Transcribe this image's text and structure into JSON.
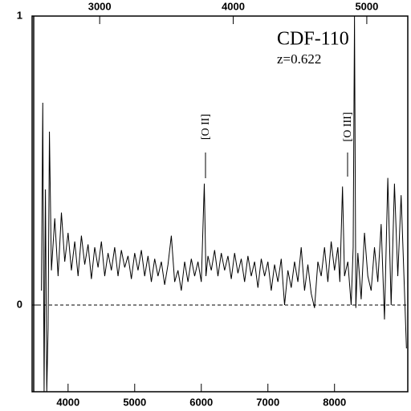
{
  "chart_data": {
    "type": "line",
    "title": "CDF-110",
    "subtitle": "z=0.622",
    "annotations": [
      "[O II]",
      "[O III]"
    ],
    "color": "#000000",
    "x": [
      3600,
      3620,
      3640,
      3660,
      3680,
      3700,
      3720,
      3750,
      3800,
      3850,
      3900,
      3950,
      4000,
      4050,
      4100,
      4150,
      4200,
      4250,
      4300,
      4350,
      4400,
      4450,
      4500,
      4550,
      4600,
      4650,
      4700,
      4750,
      4800,
      4850,
      4900,
      4950,
      5000,
      5050,
      5100,
      5150,
      5200,
      5250,
      5300,
      5350,
      5400,
      5450,
      5500,
      5550,
      5600,
      5650,
      5700,
      5750,
      5800,
      5850,
      5900,
      5950,
      6000,
      6045,
      6070,
      6100,
      6150,
      6200,
      6250,
      6300,
      6350,
      6400,
      6450,
      6500,
      6550,
      6600,
      6650,
      6700,
      6750,
      6800,
      6850,
      6900,
      6950,
      7000,
      7050,
      7100,
      7150,
      7200,
      7250,
      7300,
      7350,
      7400,
      7450,
      7500,
      7550,
      7600,
      7650,
      7700,
      7750,
      7800,
      7850,
      7900,
      7950,
      8000,
      8050,
      8080,
      8120,
      8150,
      8200,
      8250,
      8280,
      8300,
      8320,
      8350,
      8400,
      8450,
      8500,
      8550,
      8600,
      8650,
      8700,
      8750,
      8800,
      8850,
      8900,
      8950,
      9000,
      9050,
      9080
    ],
    "values": [
      0.05,
      0.7,
      -0.3,
      0.4,
      -0.3,
      -0.08,
      0.6,
      0.12,
      0.3,
      0.1,
      0.32,
      0.15,
      0.25,
      0.12,
      0.22,
      0.1,
      0.24,
      0.14,
      0.21,
      0.09,
      0.2,
      0.13,
      0.22,
      0.1,
      0.18,
      0.12,
      0.2,
      0.1,
      0.19,
      0.13,
      0.17,
      0.09,
      0.18,
      0.12,
      0.19,
      0.1,
      0.17,
      0.08,
      0.16,
      0.1,
      0.15,
      0.07,
      0.14,
      0.24,
      0.08,
      0.12,
      0.05,
      0.15,
      0.08,
      0.16,
      0.1,
      0.15,
      0.08,
      0.42,
      0.1,
      0.17,
      0.12,
      0.19,
      0.1,
      0.18,
      0.12,
      0.17,
      0.09,
      0.18,
      0.11,
      0.16,
      0.08,
      0.17,
      0.1,
      0.15,
      0.06,
      0.16,
      0.1,
      0.15,
      0.05,
      0.14,
      0.08,
      0.16,
      0.0,
      0.12,
      0.06,
      0.15,
      0.08,
      0.2,
      0.05,
      0.14,
      0.04,
      -0.01,
      0.15,
      0.1,
      0.2,
      0.08,
      0.22,
      0.12,
      0.2,
      0.08,
      0.41,
      0.1,
      0.15,
      0.0,
      0.2,
      1.0,
      -0.01,
      0.18,
      0.02,
      0.25,
      0.1,
      0.05,
      0.2,
      0.08,
      0.28,
      -0.05,
      0.44,
      0.0,
      0.42,
      0.1,
      0.38,
      0.05,
      -0.15
    ],
    "xlim": [
      3460,
      9100
    ],
    "xticks": [
      4000,
      5000,
      6000,
      7000,
      8000
    ],
    "x2lim": [
      2494,
      5307
    ],
    "x2ticks": [
      3000,
      4000,
      5000
    ],
    "ylim": [
      -0.3,
      1.0
    ],
    "yticks": [
      0,
      1
    ]
  }
}
